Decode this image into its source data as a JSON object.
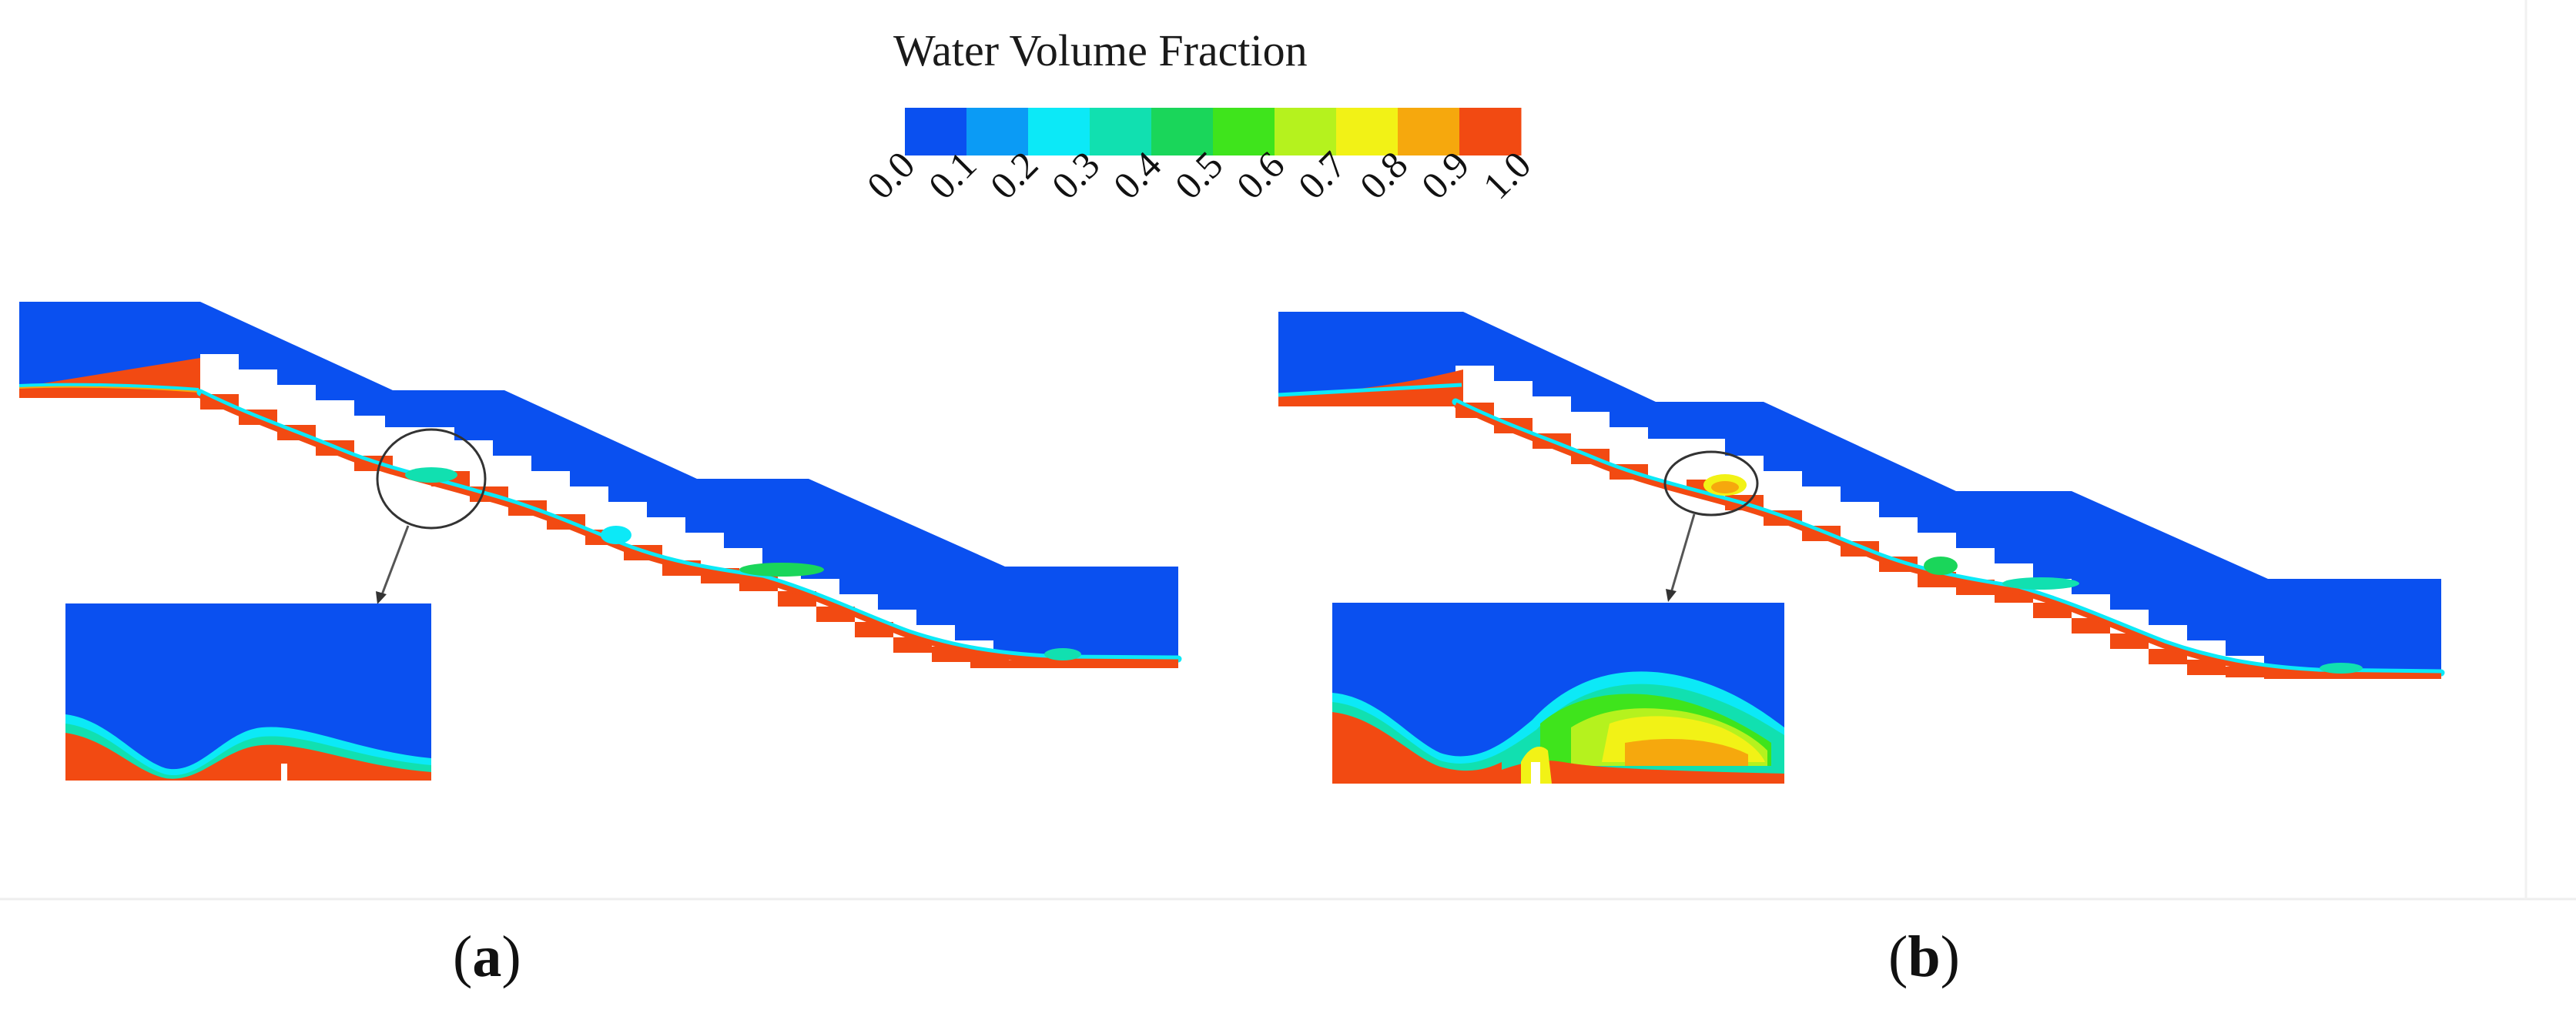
{
  "legend": {
    "title": "Water Volume Fraction",
    "ticks": [
      "0.0",
      "0.1",
      "0.2",
      "0.3",
      "0.4",
      "0.5",
      "0.6",
      "0.7",
      "0.8",
      "0.9",
      "1.0"
    ],
    "colors": [
      "#0a50f0",
      "#0b9bf5",
      "#0ce9f7",
      "#11e0b0",
      "#1ad65a",
      "#3fe41c",
      "#b5f21e",
      "#f2f216",
      "#f6a80d",
      "#f24a12"
    ]
  },
  "panels": {
    "a": {
      "label_open": "(",
      "label_letter": "a",
      "label_close": ")"
    },
    "b": {
      "label_open": "(",
      "label_letter": "b",
      "label_close": ")"
    }
  },
  "colors": {
    "air": "#0a50f0",
    "water": "#f24a12",
    "step": "#f24a12",
    "frame": "#e6e6e6"
  }
}
